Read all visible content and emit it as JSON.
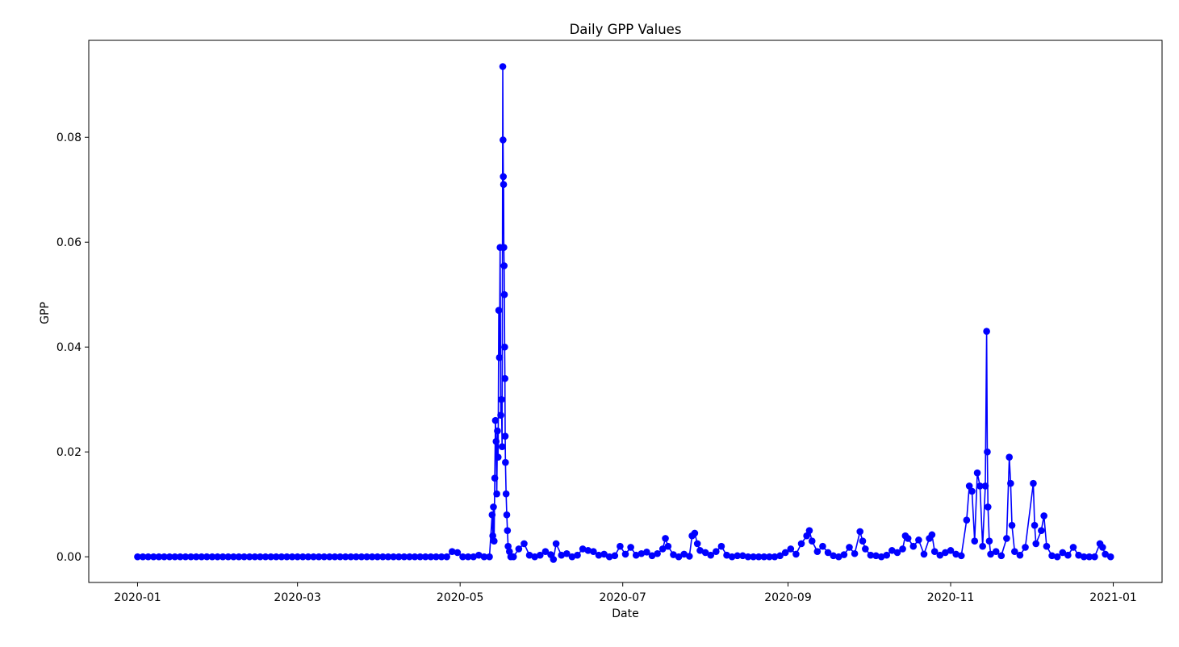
{
  "chart_data": {
    "type": "line",
    "title": "Daily GPP Values",
    "x_label": "Date",
    "y_label": "GPP",
    "xlim": [
      -18.3,
      384.3
    ],
    "xticks": [
      {
        "value": 0,
        "label": "2020-01"
      },
      {
        "value": 60,
        "label": "2020-03"
      },
      {
        "value": 121,
        "label": "2020-05"
      },
      {
        "value": 182,
        "label": "2020-07"
      },
      {
        "value": 244,
        "label": "2020-09"
      },
      {
        "value": 305,
        "label": "2020-11"
      },
      {
        "value": 366,
        "label": "2021-01"
      }
    ],
    "ylim": [
      -0.0049,
      0.0985
    ],
    "yticks": [
      {
        "value": 0,
        "label": "0.00"
      },
      {
        "value": 0.02,
        "label": "0.02"
      },
      {
        "value": 0.04,
        "label": "0.04"
      },
      {
        "value": 0.06,
        "label": "0.06"
      },
      {
        "value": 0.08,
        "label": "0.08"
      }
    ],
    "grid": false,
    "series": [
      {
        "name": "GPP",
        "color": "#0000ff",
        "x": [
          0,
          2,
          4,
          6,
          8,
          10,
          12,
          14,
          16,
          18,
          20,
          22,
          24,
          26,
          28,
          30,
          32,
          34,
          36,
          38,
          40,
          42,
          44,
          46,
          48,
          50,
          52,
          54,
          56,
          58,
          60,
          62,
          64,
          66,
          68,
          70,
          72,
          74,
          76,
          78,
          80,
          82,
          84,
          86,
          88,
          90,
          92,
          94,
          96,
          98,
          100,
          102,
          104,
          106,
          108,
          110,
          112,
          114,
          116,
          118,
          120,
          122,
          124,
          126,
          128,
          130,
          132,
          133,
          133.25,
          133.5,
          133.75,
          134,
          134.25,
          134.5,
          134.75,
          135,
          135.25,
          135.5,
          135.75,
          136,
          136.25,
          136.5,
          136.75,
          137,
          137.1,
          137.2,
          137.3,
          137.4,
          137.5,
          137.6,
          137.7,
          137.8,
          137.9,
          138,
          138.25,
          138.5,
          138.75,
          139,
          139.5,
          140,
          141,
          143,
          145,
          147,
          149,
          151,
          153,
          155,
          156,
          157,
          159,
          161,
          163,
          165,
          167,
          169,
          171,
          173,
          175,
          177,
          179,
          181,
          183,
          185,
          187,
          189,
          191,
          193,
          195,
          197,
          198,
          199,
          201,
          203,
          205,
          207,
          208,
          209,
          210,
          211,
          213,
          215,
          217,
          219,
          221,
          223,
          225,
          227,
          229,
          231,
          233,
          235,
          237,
          239,
          241,
          243,
          245,
          247,
          249,
          251,
          252,
          253,
          255,
          257,
          259,
          261,
          263,
          265,
          267,
          269,
          271,
          272,
          273,
          275,
          277,
          279,
          281,
          283,
          285,
          287,
          288,
          289,
          291,
          293,
          295,
          297,
          298,
          299,
          301,
          303,
          305,
          307,
          309,
          311,
          312,
          313,
          314,
          315,
          316,
          317,
          318,
          318.5,
          318.75,
          319,
          319.5,
          320,
          322,
          324,
          326,
          327,
          327.5,
          328,
          329,
          331,
          333,
          336,
          336.5,
          337,
          339,
          340,
          341,
          343,
          345,
          347,
          349,
          351,
          353,
          355,
          357,
          359,
          361,
          362,
          363,
          365
        ],
        "values": [
          0,
          0,
          0,
          0,
          0,
          0,
          0,
          0,
          0,
          0,
          0,
          0,
          0,
          0,
          0,
          0,
          0,
          0,
          0,
          0,
          0,
          0,
          0,
          0,
          0,
          0,
          0,
          0,
          0,
          0,
          0,
          0,
          0,
          0,
          0,
          0,
          0,
          0,
          0,
          0,
          0,
          0,
          0,
          0,
          0,
          0,
          0,
          0,
          0,
          0,
          0,
          0,
          0,
          0,
          0,
          0,
          0,
          0,
          0,
          0.001,
          0.0008,
          0,
          0,
          0,
          0.0003,
          0,
          0,
          0.008,
          0.004,
          0.0095,
          0.003,
          0.015,
          0.026,
          0.022,
          0.012,
          0.024,
          0.019,
          0.047,
          0.038,
          0.059,
          0.027,
          0.03,
          0.021,
          0.0935,
          0.0795,
          0.0725,
          0.071,
          0.059,
          0.0555,
          0.05,
          0.04,
          0.034,
          0.023,
          0.018,
          0.012,
          0.008,
          0.005,
          0.002,
          0.001,
          0,
          0,
          0.0015,
          0.0025,
          0.0003,
          0,
          0.0003,
          0.001,
          0.0004,
          -0.0005,
          0.0025,
          0.0003,
          0.0006,
          0,
          0.0003,
          0.0015,
          0.0012,
          0.001,
          0.0003,
          0.0005,
          0,
          0.0002,
          0.002,
          0.0005,
          0.0018,
          0.0003,
          0.0006,
          0.0009,
          0.0002,
          0.0006,
          0.0015,
          0.0035,
          0.002,
          0.0004,
          0,
          0.0005,
          0.0001,
          0.004,
          0.0045,
          0.0025,
          0.0012,
          0.0008,
          0.0003,
          0.001,
          0.002,
          0.0003,
          0,
          0.0002,
          0.0002,
          0,
          0,
          0,
          0,
          0,
          0,
          0.0002,
          0.0008,
          0.0015,
          0.0005,
          0.0025,
          0.004,
          0.005,
          0.003,
          0.001,
          0.002,
          0.0008,
          0.0002,
          0,
          0.0004,
          0.0018,
          0.0006,
          0.0048,
          0.003,
          0.0015,
          0.0003,
          0.0002,
          0,
          0.0003,
          0.0012,
          0.0008,
          0.0015,
          0.004,
          0.0035,
          0.002,
          0.0032,
          0.0005,
          0.0035,
          0.0042,
          0.001,
          0.0003,
          0.0008,
          0.0012,
          0.0005,
          0.0002,
          0.007,
          0.0135,
          0.0125,
          0.003,
          0.016,
          0.0135,
          0.002,
          0.0135,
          0.043,
          0.02,
          0.0095,
          0.003,
          0.0005,
          0.001,
          0.0002,
          0.0035,
          0.019,
          0.014,
          0.006,
          0.001,
          0.0003,
          0.0018,
          0.014,
          0.006,
          0.0025,
          0.005,
          0.0078,
          0.002,
          0.0002,
          0,
          0.0008,
          0.0003,
          0.0018,
          0.0003,
          0,
          0,
          0,
          0.0025,
          0.0018,
          0.0005,
          0
        ]
      }
    ]
  }
}
